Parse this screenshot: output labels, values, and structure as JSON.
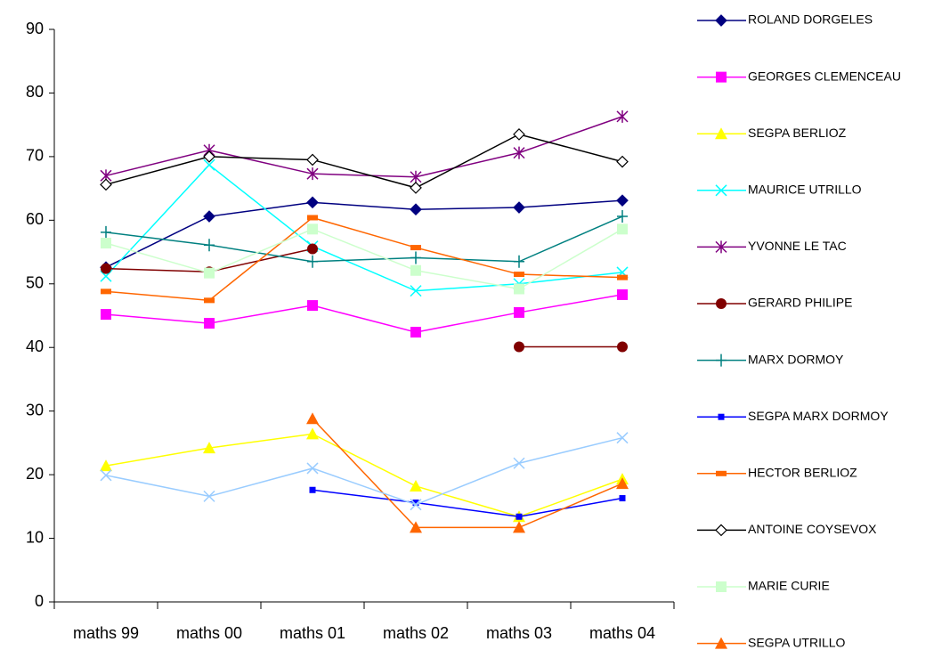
{
  "chart_data": {
    "type": "line",
    "categories": [
      "maths 99",
      "maths 00",
      "maths 01",
      "maths 02",
      "maths 03",
      "maths 04"
    ],
    "ylim": [
      0,
      90
    ],
    "yticks": [
      0,
      10,
      20,
      30,
      40,
      50,
      60,
      70,
      80,
      90
    ],
    "grid": false,
    "legend": "right",
    "series": [
      {
        "name": "ROLAND DORGELES",
        "color": "#000080",
        "marker": "diamond",
        "values": [
          52.6,
          60.6,
          62.8,
          61.7,
          62.0,
          63.1
        ]
      },
      {
        "name": "GEORGES CLEMENCEAU",
        "color": "#ff00ff",
        "marker": "square",
        "values": [
          45.2,
          43.8,
          46.6,
          42.4,
          45.5,
          48.3
        ]
      },
      {
        "name": "SEGPA BERLIOZ",
        "color": "#ffff00",
        "marker": "triangle",
        "values": [
          21.4,
          24.2,
          26.4,
          18.2,
          13.4,
          19.3
        ]
      },
      {
        "name": "MAURICE UTRILLO",
        "color": "#00ffff",
        "marker": "x",
        "values": [
          51.2,
          68.7,
          55.9,
          48.9,
          50.0,
          51.8
        ]
      },
      {
        "name": "YVONNE LE TAC",
        "color": "#800080",
        "marker": "star",
        "values": [
          67.0,
          71.0,
          67.3,
          66.8,
          70.6,
          76.3
        ]
      },
      {
        "name": "GERARD PHILIPE",
        "color": "#800000",
        "marker": "circle",
        "values": [
          52.4,
          51.9,
          55.5,
          null,
          40.1,
          40.1
        ]
      },
      {
        "name": "MARX DORMOY",
        "color": "#008080",
        "marker": "plus",
        "values": [
          58.1,
          56.1,
          53.5,
          54.1,
          53.5,
          60.6
        ]
      },
      {
        "name": "SEGPA MARX DORMOY",
        "color": "#0000ff",
        "marker": "smallsquare",
        "values": [
          null,
          null,
          17.6,
          15.6,
          13.4,
          16.3
        ]
      },
      {
        "name": "HECTOR BERLIOZ",
        "color": "#ff6600",
        "marker": "dash",
        "values": [
          48.8,
          47.4,
          60.4,
          55.7,
          51.5,
          51.0
        ]
      },
      {
        "name": "ANTOINE COYSEVOX",
        "color": "#000000",
        "marker": "opendiamond",
        "values": [
          65.6,
          70.0,
          69.5,
          65.1,
          73.5,
          69.2
        ]
      },
      {
        "name": "MARIE CURIE",
        "color": "#ccffcc",
        "marker": "square",
        "values": [
          56.4,
          51.7,
          58.6,
          52.1,
          49.2,
          58.6
        ]
      },
      {
        "name": "SEGPA  UTRILLO",
        "color": "#ff6600",
        "marker": "triangle",
        "values": [
          null,
          null,
          28.8,
          11.7,
          11.7,
          18.6
        ]
      },
      {
        "color": "#99ccff",
        "marker": "x",
        "values": [
          19.9,
          16.6,
          21.0,
          15.3,
          21.8,
          25.8
        ]
      }
    ]
  }
}
